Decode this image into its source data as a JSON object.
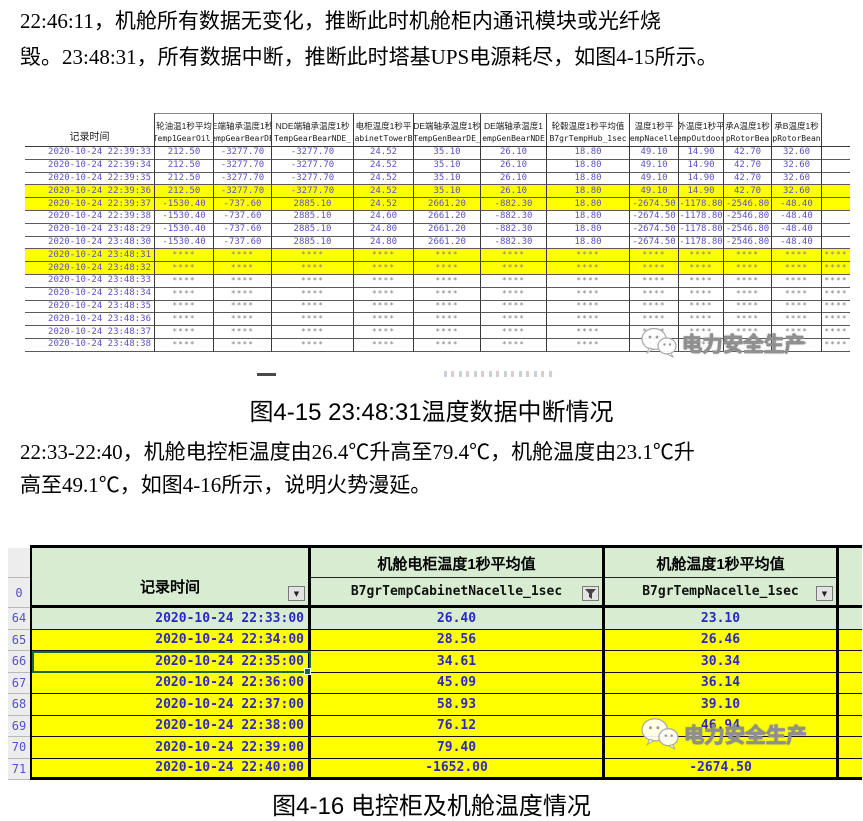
{
  "intro": {
    "lines": [
      "22:46:11，机舱所有数据无变化，推断此时机舱柜内通讯模块或光纤烧",
      "毁。23:48:31，所有数据中断，推断此时塔基UPS电源耗尽，如图4-15所示。"
    ]
  },
  "para2": {
    "lines": [
      "22:33-22:40，机舱电控柜温度由26.4℃升高至79.4℃，机舱温度由23.1℃升",
      "高至49.1℃，如图4-16所示，说明火势漫延。"
    ]
  },
  "captions": {
    "fig15": "图4-15 23:48:31温度数据中断情况",
    "fig16": "图4-16 电控柜及机舱温度情况"
  },
  "watermark": {
    "text": "电力安全生产",
    "logo": "wechat-bubbles-icon"
  },
  "colors": {
    "highlight_yellow": "#ffff00",
    "header_green": "#d8ecd2",
    "table1_text": "#5b50c8",
    "table2_text": "#2a28c4",
    "selection_green": "#17683f"
  },
  "table1": {
    "time_header": "记录时间",
    "interrupt_marker": "****",
    "columns": [
      {
        "cn": "记录时间",
        "en": ""
      },
      {
        "cn": "轮油温1秒平均",
        "en": "Temp1GearOil_"
      },
      {
        "cn": "E端轴承温度1秒",
        "en": "empGearBearDE"
      },
      {
        "cn": "NDE端轴承温度1秒",
        "en": "TempGearBearNDE_"
      },
      {
        "cn": "电柜温度1秒平",
        "en": "CabinetTowerBr"
      },
      {
        "cn": "DE端轴承温度1秒",
        "en": "TempGenBearDE_"
      },
      {
        "cn": "DE端轴承温度1",
        "en": "empGenBearNDE"
      },
      {
        "cn": "轮毂温度1秒平均值",
        "en": "B7grTempHub_1sec"
      },
      {
        "cn": "温度1秒平",
        "en": "empNacelle"
      },
      {
        "cn": "外温度1秒平",
        "en": "empOutdoor"
      },
      {
        "cn": "承A温度1秒",
        "en": "pRotorBea"
      },
      {
        "cn": "承B温度1秒",
        "en": "pRotorBean"
      },
      {
        "cn": "",
        "en": ""
      }
    ],
    "rows": [
      {
        "time": "2020-10-24 22:39:33",
        "hl": false,
        "values": [
          "212.50",
          "-3277.70",
          "-3277.70",
          "24.52",
          "35.10",
          "26.10",
          "18.80",
          "49.10",
          "14.90",
          "42.70",
          "32.60",
          ""
        ]
      },
      {
        "time": "2020-10-24 22:39:34",
        "hl": false,
        "values": [
          "212.50",
          "-3277.70",
          "-3277.70",
          "24.52",
          "35.10",
          "26.10",
          "18.80",
          "49.10",
          "14.90",
          "42.70",
          "32.60",
          ""
        ]
      },
      {
        "time": "2020-10-24 22:39:35",
        "hl": false,
        "values": [
          "212.50",
          "-3277.70",
          "-3277.70",
          "24.52",
          "35.10",
          "26.10",
          "18.80",
          "49.10",
          "14.90",
          "42.70",
          "32.60",
          ""
        ]
      },
      {
        "time": "2020-10-24 22:39:36",
        "hl": true,
        "values": [
          "212.50",
          "-3277.70",
          "-3277.70",
          "24.52",
          "35.10",
          "26.10",
          "18.80",
          "49.10",
          "14.90",
          "42.70",
          "32.60",
          ""
        ]
      },
      {
        "time": "2020-10-24 22:39:37",
        "hl": true,
        "values": [
          "-1530.40",
          "-737.60",
          "2885.10",
          "24.52",
          "2661.20",
          "-882.30",
          "18.80",
          "-2674.50",
          "-1178.80",
          "-2546.80",
          "-48.40",
          ""
        ]
      },
      {
        "time": "2020-10-24 22:39:38",
        "hl": false,
        "values": [
          "-1530.40",
          "-737.60",
          "2885.10",
          "24.60",
          "2661.20",
          "-882.30",
          "18.80",
          "-2674.50",
          "-1178.80",
          "-2546.80",
          "-48.40",
          ""
        ]
      },
      {
        "time": "2020-10-24 23:48:29",
        "hl": false,
        "values": [
          "-1530.40",
          "-737.60",
          "2885.10",
          "24.80",
          "2661.20",
          "-882.30",
          "18.80",
          "-2674.50",
          "-1178.80",
          "-2546.80",
          "-48.40",
          ""
        ]
      },
      {
        "time": "2020-10-24 23:48:30",
        "hl": false,
        "values": [
          "-1530.40",
          "-737.60",
          "2885.10",
          "24.80",
          "2661.20",
          "-882.30",
          "18.80",
          "-2674.50",
          "-1178.80",
          "-2546.80",
          "-48.40",
          ""
        ]
      },
      {
        "time": "2020-10-24 23:48:31",
        "hl": true,
        "values": [
          "****",
          "****",
          "****",
          "****",
          "****",
          "****",
          "****",
          "****",
          "****",
          "****",
          "****",
          "****"
        ]
      },
      {
        "time": "2020-10-24 23:48:32",
        "hl": true,
        "values": [
          "****",
          "****",
          "****",
          "****",
          "****",
          "****",
          "****",
          "****",
          "****",
          "****",
          "****",
          "****"
        ]
      },
      {
        "time": "2020-10-24 23:48:33",
        "hl": false,
        "values": [
          "****",
          "****",
          "****",
          "****",
          "****",
          "****",
          "****",
          "****",
          "****",
          "****",
          "****",
          "****"
        ]
      },
      {
        "time": "2020-10-24 23:48:34",
        "hl": false,
        "values": [
          "****",
          "****",
          "****",
          "****",
          "****",
          "****",
          "****",
          "****",
          "****",
          "****",
          "****",
          "****"
        ]
      },
      {
        "time": "2020-10-24 23:48:35",
        "hl": false,
        "values": [
          "****",
          "****",
          "****",
          "****",
          "****",
          "****",
          "****",
          "****",
          "****",
          "****",
          "****",
          "****"
        ]
      },
      {
        "time": "2020-10-24 23:48:36",
        "hl": false,
        "values": [
          "****",
          "****",
          "****",
          "****",
          "****",
          "****",
          "****",
          "****",
          "****",
          "****",
          "****",
          "****"
        ]
      },
      {
        "time": "2020-10-24 23:48:37",
        "hl": false,
        "values": [
          "****",
          "****",
          "****",
          "****",
          "****",
          "****",
          "****",
          "****",
          "****",
          "****",
          "****",
          "****"
        ]
      },
      {
        "time": "2020-10-24 23:48:38",
        "hl": false,
        "values": [
          "****",
          "****",
          "****",
          "****",
          "****",
          "****",
          "****",
          "****",
          "****",
          "****",
          "****",
          "****"
        ]
      }
    ]
  },
  "table2": {
    "gutter": [
      "",
      "0",
      "64",
      "65",
      "66",
      "67",
      "68",
      "69",
      "70",
      "71"
    ],
    "columns": [
      {
        "label": "记录时间",
        "sub": "",
        "filter": "arrow"
      },
      {
        "label": "机舱电柜温度1秒平均值",
        "sub": "B7grTempCabinetNacelle_1sec",
        "filter": "funnel"
      },
      {
        "label": "机舱温度1秒平均值",
        "sub": "B7grTempNacelle_1sec",
        "filter": "arrow"
      }
    ],
    "rows": [
      {
        "time": "2020-10-24 22:33:00",
        "cabinet": "26.40",
        "nacelle": "23.10",
        "bg": "green",
        "active": false
      },
      {
        "time": "2020-10-24 22:34:00",
        "cabinet": "28.56",
        "nacelle": "26.46",
        "bg": "yellow",
        "active": false
      },
      {
        "time": "2020-10-24 22:35:00",
        "cabinet": "34.61",
        "nacelle": "30.34",
        "bg": "yellow",
        "active": true
      },
      {
        "time": "2020-10-24 22:36:00",
        "cabinet": "45.09",
        "nacelle": "36.14",
        "bg": "yellow",
        "active": false
      },
      {
        "time": "2020-10-24 22:37:00",
        "cabinet": "58.93",
        "nacelle": "39.10",
        "bg": "yellow",
        "active": false
      },
      {
        "time": "2020-10-24 22:38:00",
        "cabinet": "76.12",
        "nacelle": "46.94",
        "bg": "yellow",
        "active": false
      },
      {
        "time": "2020-10-24 22:39:00",
        "cabinet": "79.40",
        "nacelle": "",
        "bg": "yellow",
        "active": false
      },
      {
        "time": "2020-10-24 22:40:00",
        "cabinet": "-1652.00",
        "nacelle": "-2674.50",
        "bg": "yellow",
        "active": false
      }
    ]
  }
}
